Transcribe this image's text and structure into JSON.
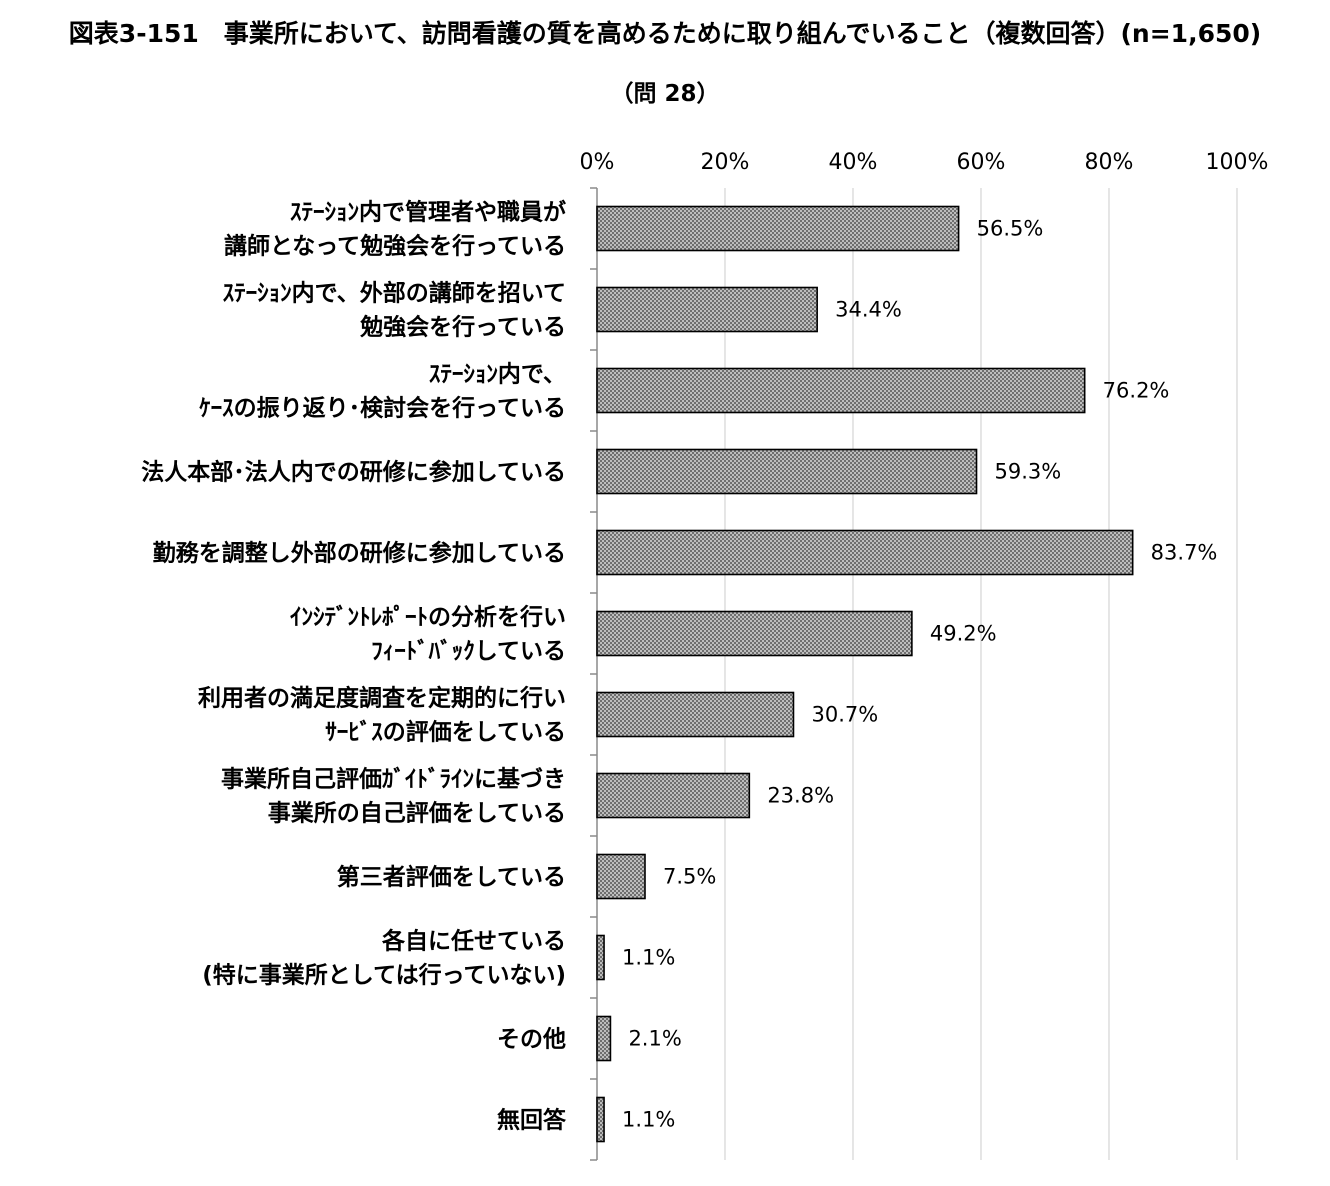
{
  "title": "図表3-151　事業所において、訪問看護の質を高めるために取り組んでいること（複数回答）(n=1,650)",
  "subtitle": "（問 28）",
  "chart_data": {
    "type": "bar",
    "orientation": "horizontal",
    "title": "図表3-151　事業所において、訪問看護の質を高めるために取り組んでいること（複数回答）(n=1,650)",
    "subtitle": "（問 28）",
    "xlim": [
      0,
      100
    ],
    "x_ticks": [
      "0%",
      "20%",
      "40%",
      "60%",
      "80%",
      "100%"
    ],
    "grid": true,
    "legend": "none",
    "bar_color": "#8c8c8c",
    "categories": [
      [
        "ｽﾃｰｼｮﾝ内で管理者や職員が",
        "講師となって勉強会を行っている"
      ],
      [
        "ｽﾃｰｼｮﾝ内で、外部の講師を招いて",
        "勉強会を行っている"
      ],
      [
        "ｽﾃｰｼｮﾝ内で、",
        "ｹｰｽの振り返り･検討会を行っている"
      ],
      [
        "法人本部･法人内での研修に参加している"
      ],
      [
        "勤務を調整し外部の研修に参加している"
      ],
      [
        "ｲﾝｼﾃﾞﾝﾄﾚﾎﾟｰﾄの分析を行い",
        "ﾌｨｰﾄﾞﾊﾞｯｸしている"
      ],
      [
        "利用者の満足度調査を定期的に行い",
        "ｻｰﾋﾞｽの評価をしている"
      ],
      [
        "事業所自己評価ｶﾞｲﾄﾞﾗｲﾝに基づき",
        "事業所の自己評価をしている"
      ],
      [
        "第三者評価をしている"
      ],
      [
        "各自に任せている",
        "(特に事業所としては行っていない)"
      ],
      [
        "その他"
      ],
      [
        "無回答"
      ]
    ],
    "values": [
      56.5,
      34.4,
      76.2,
      59.3,
      83.7,
      49.2,
      30.7,
      23.8,
      7.5,
      1.1,
      2.1,
      1.1
    ],
    "value_labels": [
      "56.5%",
      "34.4%",
      "76.2%",
      "59.3%",
      "83.7%",
      "49.2%",
      "30.7%",
      "23.8%",
      "7.5%",
      "1.1%",
      "2.1%",
      "1.1%"
    ]
  }
}
